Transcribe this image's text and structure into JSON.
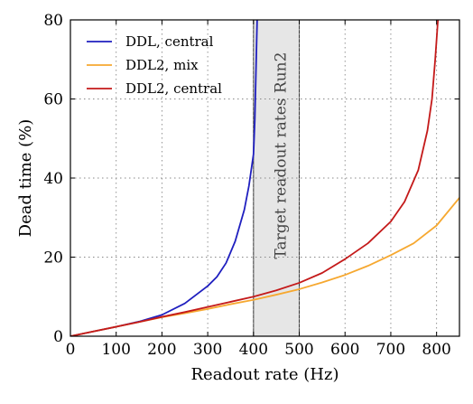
{
  "chart_data": {
    "type": "line",
    "xlabel": "Readout rate (Hz)",
    "ylabel": "Dead time (%)",
    "xlim": [
      0,
      850
    ],
    "ylim": [
      0,
      80
    ],
    "x_ticks": [
      "0",
      "100",
      "200",
      "300",
      "400",
      "500",
      "600",
      "700",
      "800"
    ],
    "y_ticks": [
      "0",
      "20",
      "40",
      "60",
      "80"
    ],
    "grid": "dotted",
    "legend_position": "top-left",
    "shaded_band": {
      "x_range": [
        400,
        500
      ],
      "label": "Target readout rates Run2",
      "color": "#e6e6e6"
    },
    "series": [
      {
        "name": "DDL, central",
        "color": "#1f1fbf",
        "points": [
          [
            0,
            0
          ],
          [
            50,
            1.2
          ],
          [
            100,
            2.4
          ],
          [
            150,
            3.7
          ],
          [
            200,
            5.4
          ],
          [
            250,
            8.3
          ],
          [
            300,
            12.7
          ],
          [
            320,
            15.0
          ],
          [
            340,
            18.5
          ],
          [
            360,
            24.0
          ],
          [
            380,
            32.0
          ],
          [
            390,
            38.0
          ],
          [
            400,
            46.0
          ],
          [
            403,
            55.0
          ],
          [
            405,
            65.0
          ],
          [
            407,
            75.0
          ],
          [
            408,
            80.0
          ]
        ]
      },
      {
        "name": "DDL2, mix",
        "color": "#f6a830",
        "points": [
          [
            0,
            0
          ],
          [
            50,
            1.2
          ],
          [
            100,
            2.4
          ],
          [
            150,
            3.6
          ],
          [
            200,
            4.8
          ],
          [
            250,
            5.8
          ],
          [
            300,
            6.9
          ],
          [
            350,
            8.1
          ],
          [
            400,
            9.2
          ],
          [
            450,
            10.5
          ],
          [
            500,
            11.9
          ],
          [
            550,
            13.6
          ],
          [
            600,
            15.5
          ],
          [
            650,
            17.8
          ],
          [
            700,
            20.5
          ],
          [
            750,
            23.5
          ],
          [
            800,
            28.0
          ],
          [
            850,
            35.0
          ]
        ]
      },
      {
        "name": "DDL2, central",
        "color": "#c41a1a",
        "points": [
          [
            0,
            0
          ],
          [
            50,
            1.2
          ],
          [
            100,
            2.4
          ],
          [
            150,
            3.6
          ],
          [
            200,
            4.9
          ],
          [
            250,
            6.1
          ],
          [
            300,
            7.4
          ],
          [
            350,
            8.7
          ],
          [
            400,
            10.0
          ],
          [
            450,
            11.6
          ],
          [
            500,
            13.5
          ],
          [
            550,
            16.0
          ],
          [
            600,
            19.5
          ],
          [
            650,
            23.5
          ],
          [
            700,
            29.0
          ],
          [
            730,
            34.0
          ],
          [
            760,
            42.0
          ],
          [
            780,
            52.0
          ],
          [
            790,
            60.0
          ],
          [
            797,
            70.0
          ],
          [
            800,
            75.0
          ],
          [
            803,
            80.0
          ]
        ]
      }
    ]
  }
}
